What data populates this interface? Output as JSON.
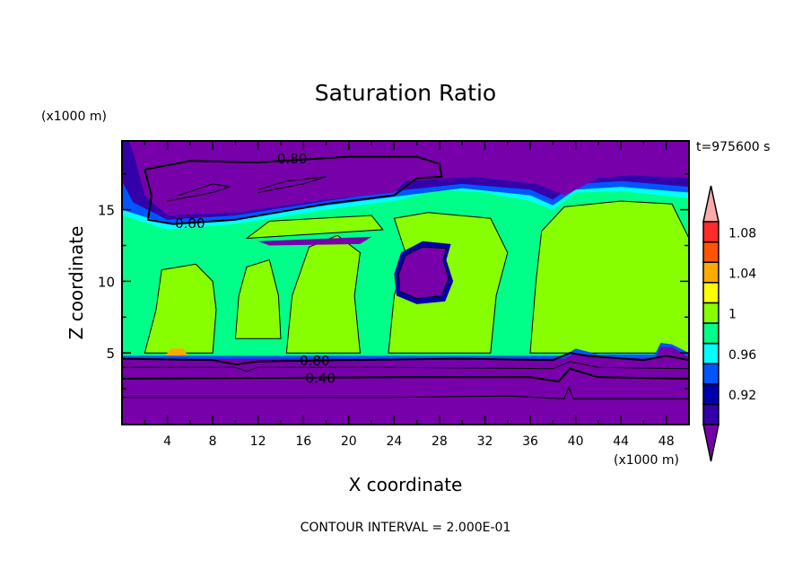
{
  "chart_data": {
    "type": "heatmap",
    "subtype": "filled-contour",
    "title": "Saturation Ratio",
    "xlabel": "X coordinate",
    "ylabel": "Z coordinate",
    "x_units": "(x1000 m)",
    "y_units": "(x1000 m)",
    "time_label": "t=975600 s",
    "footer": "CONTOUR INTERVAL = 2.000E-01",
    "xlim": [
      0,
      50
    ],
    "ylim": [
      0,
      19.8
    ],
    "x_ticks": [
      4,
      8,
      12,
      16,
      20,
      24,
      28,
      32,
      36,
      40,
      44,
      48
    ],
    "x_tick_labels": [
      "4",
      "8",
      "12",
      "16",
      "20",
      "24",
      "28",
      "32",
      "36",
      "40",
      "44",
      "48"
    ],
    "y_ticks": [
      5,
      10,
      15
    ],
    "y_tick_labels": [
      "5",
      "10",
      "15"
    ],
    "colorbar": {
      "levels": [
        0.9,
        0.92,
        0.94,
        0.96,
        0.98,
        1.0,
        1.02,
        1.04,
        1.06,
        1.08,
        1.1
      ],
      "labels": [
        "0.92",
        "0.96",
        "1",
        "1.04",
        "1.08"
      ],
      "label_values": [
        0.92,
        0.96,
        1.0,
        1.04,
        1.08
      ],
      "colors": [
        "#7700aa",
        "#3300aa",
        "#0000aa",
        "#0055ff",
        "#00ffff",
        "#00ff88",
        "#88ff00",
        "#ffff00",
        "#ffaa00",
        "#ff5500",
        "#ff2a2a",
        "#ffaaaa"
      ],
      "extend": "both"
    },
    "contour_labels": [
      {
        "text": "0.80",
        "x": 15,
        "z": 18.6
      },
      {
        "text": "0.80",
        "x": 6,
        "z": 14.1
      },
      {
        "text": "0.80",
        "x": 17,
        "z": 4.5
      },
      {
        "text": "0.40",
        "x": 17.5,
        "z": 3.3
      }
    ],
    "grid": false
  }
}
